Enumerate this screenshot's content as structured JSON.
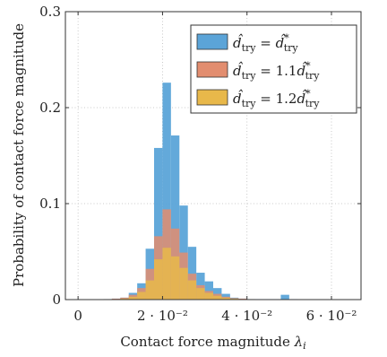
{
  "chart_data": {
    "type": "bar",
    "subtype": "histogram",
    "xlabel": "Contact force magnitude λ_i",
    "ylabel": "Probability of contact force magnitude",
    "xlim": [
      -0.003,
      0.067
    ],
    "ylim": [
      0,
      0.3
    ],
    "grid": true,
    "legend_position": "top-right",
    "x_ticks": [
      {
        "value": 0,
        "label": "0"
      },
      {
        "value": 0.02,
        "label": "2 · 10⁻²"
      },
      {
        "value": 0.04,
        "label": "4 · 10⁻²"
      },
      {
        "value": 0.06,
        "label": "6 · 10⁻²"
      }
    ],
    "y_ticks": [
      {
        "value": 0,
        "label": "0"
      },
      {
        "value": 0.1,
        "label": "0.1"
      },
      {
        "value": 0.2,
        "label": "0.2"
      },
      {
        "value": 0.3,
        "label": "0.3"
      }
    ],
    "bin_width": 0.002,
    "bin_starts": [
      0.002,
      0.004,
      0.006,
      0.008,
      0.01,
      0.012,
      0.014,
      0.016,
      0.018,
      0.02,
      0.022,
      0.024,
      0.026,
      0.028,
      0.03,
      0.032,
      0.034,
      0.036,
      0.038,
      0.04,
      0.042,
      0.044,
      0.046,
      0.048,
      0.05,
      0.052,
      0.054,
      0.056,
      0.058,
      0.06,
      0.062
    ],
    "series": [
      {
        "name": "d̂_try = d̂*_try",
        "color": "#5ba4d8",
        "values": [
          0,
          0,
          0.0005,
          0.001,
          0.002,
          0.007,
          0.017,
          0.053,
          0.158,
          0.226,
          0.171,
          0.098,
          0.055,
          0.028,
          0.019,
          0.012,
          0.006,
          0.002,
          0.001,
          0.0005,
          0.0005,
          0.0005,
          0.0005,
          0.005,
          0.0005,
          0.0003,
          0.0002,
          0.0002,
          0.0002,
          0.0002,
          0.0001
        ]
      },
      {
        "name": "d̂_try = 1.1d̂*_try",
        "color": "#e28d6f",
        "values": [
          0,
          0,
          0.0005,
          0.001,
          0.002,
          0.005,
          0.012,
          0.032,
          0.066,
          0.094,
          0.074,
          0.049,
          0.027,
          0.015,
          0.009,
          0.006,
          0.003,
          0.0015,
          0.001,
          0.0005,
          0.0003,
          0.0002,
          0.0002,
          0.0002,
          0.0001,
          0.0001,
          0.0001,
          0.0001,
          0.0001,
          0.0001,
          0.0001
        ]
      },
      {
        "name": "d̂_try = 1.2d̂*_try",
        "color": "#e8b84a",
        "values": [
          0,
          0,
          0.0003,
          0.0005,
          0.001,
          0.003,
          0.008,
          0.02,
          0.042,
          0.054,
          0.045,
          0.033,
          0.02,
          0.012,
          0.007,
          0.004,
          0.002,
          0.001,
          0.0005,
          0.0003,
          0.0002,
          0.0001,
          0.0001,
          0.0001,
          0.0001,
          0.0001,
          0.0001,
          0.0001,
          0.0001,
          0.0001,
          0.0001
        ]
      }
    ]
  }
}
